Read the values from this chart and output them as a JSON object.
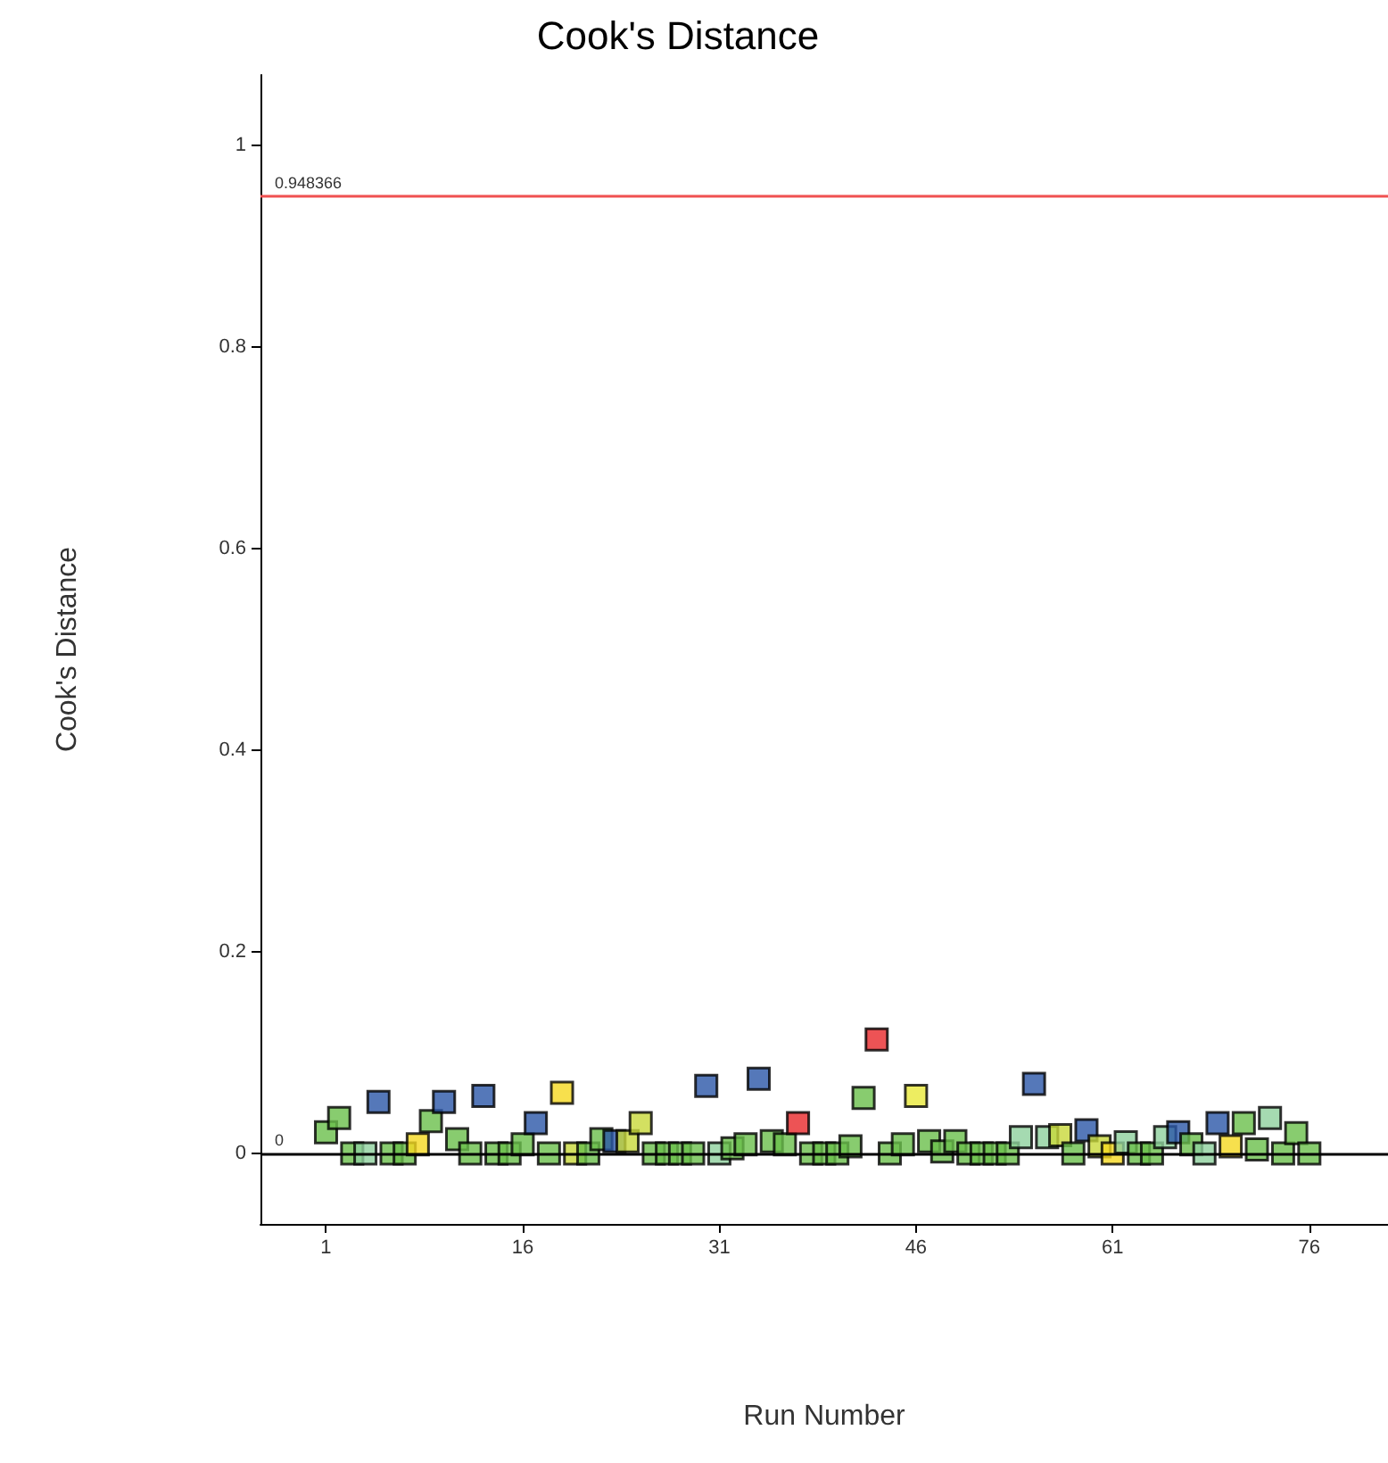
{
  "chart_data": {
    "type": "scatter",
    "title": "Cook's Distance",
    "xlabel": "Run Number",
    "ylabel": "Cook's Distance",
    "x": [
      1,
      2,
      3,
      4,
      5,
      6,
      7,
      8,
      9,
      10,
      11,
      12,
      13,
      14,
      15,
      16,
      17,
      18,
      19,
      20,
      21,
      22,
      23,
      24,
      25,
      26,
      27,
      28,
      29,
      30,
      31,
      32,
      33,
      34,
      35,
      36,
      37,
      38,
      39,
      40,
      41,
      42,
      43,
      44,
      45,
      46,
      47,
      48,
      49,
      50,
      51,
      52,
      53,
      54,
      55,
      56,
      57,
      58,
      59,
      60,
      61,
      62,
      63,
      64,
      65,
      66,
      67,
      68,
      69,
      70,
      71,
      72,
      73,
      74,
      75,
      76
    ],
    "values": [
      0.021,
      0.035,
      0,
      0,
      0.051,
      0,
      0,
      0.009,
      0.032,
      0.051,
      0.014,
      0,
      0.057,
      0,
      0,
      0.009,
      0.03,
      0,
      0.06,
      0,
      0,
      0.014,
      0.012,
      0.012,
      0.03,
      0,
      0,
      0,
      0,
      0.067,
      0,
      0.005,
      0.009,
      0.074,
      0.012,
      0.009,
      0.03,
      0,
      0,
      0,
      0.007,
      0.055,
      0.113,
      0,
      0.009,
      0.057,
      0.012,
      0.002,
      0.012,
      0,
      0,
      0,
      0,
      0.016,
      0.069,
      0.016,
      0.018,
      0,
      0.023,
      0.007,
      0,
      0.011,
      0,
      0,
      0.016,
      0.021,
      0.009,
      0,
      0.03,
      0.007,
      0.03,
      0.004,
      0.035,
      0,
      0.02,
      0
    ],
    "colors": [
      "#6abf4b",
      "#6abf4b",
      "#6abf4b",
      "#8fd19e",
      "#2a56a8",
      "#6abf4b",
      "#6abf4b",
      "#f5d820",
      "#6abf4b",
      "#2a56a8",
      "#6abf4b",
      "#6abf4b",
      "#2a56a8",
      "#6abf4b",
      "#6abf4b",
      "#6abf4b",
      "#2a56a8",
      "#6abf4b",
      "#f5d820",
      "#c8d83a",
      "#6abf4b",
      "#6abf4b",
      "#2a56a8",
      "#c8d83a",
      "#c8d83a",
      "#6abf4b",
      "#6abf4b",
      "#6abf4b",
      "#6abf4b",
      "#2a56a8",
      "#8fd19e",
      "#6abf4b",
      "#6abf4b",
      "#2a56a8",
      "#6abf4b",
      "#6abf4b",
      "#e8282a",
      "#6abf4b",
      "#6abf4b",
      "#6abf4b",
      "#6abf4b",
      "#6abf4b",
      "#e8282a",
      "#6abf4b",
      "#6abf4b",
      "#e8e83a",
      "#6abf4b",
      "#6abf4b",
      "#6abf4b",
      "#6abf4b",
      "#6abf4b",
      "#6abf4b",
      "#6abf4b",
      "#8fd19e",
      "#2a56a8",
      "#8fd19e",
      "#c8d83a",
      "#6abf4b",
      "#2a56a8",
      "#c8d83a",
      "#f5d820",
      "#8fd19e",
      "#6abf4b",
      "#6abf4b",
      "#8fd19e",
      "#2a56a8",
      "#6abf4b",
      "#8fd19e",
      "#2a56a8",
      "#f5d820",
      "#6abf4b",
      "#6abf4b",
      "#8fd19e",
      "#6abf4b",
      "#6abf4b",
      "#6abf4b"
    ],
    "marker": "square",
    "xlim": [
      -4,
      82
    ],
    "ylim": [
      -0.07,
      1.07
    ],
    "xticks": [
      1,
      16,
      31,
      46,
      61,
      76
    ],
    "yticks": [
      0,
      0.2,
      0.4,
      0.6,
      0.8,
      1
    ],
    "ref_lines": [
      {
        "axis": "y",
        "value": 0.948366,
        "label": "0.948366",
        "color": "#f05050"
      },
      {
        "axis": "y",
        "value": 0,
        "label": "0",
        "color": "#000000"
      }
    ],
    "grid": false
  }
}
